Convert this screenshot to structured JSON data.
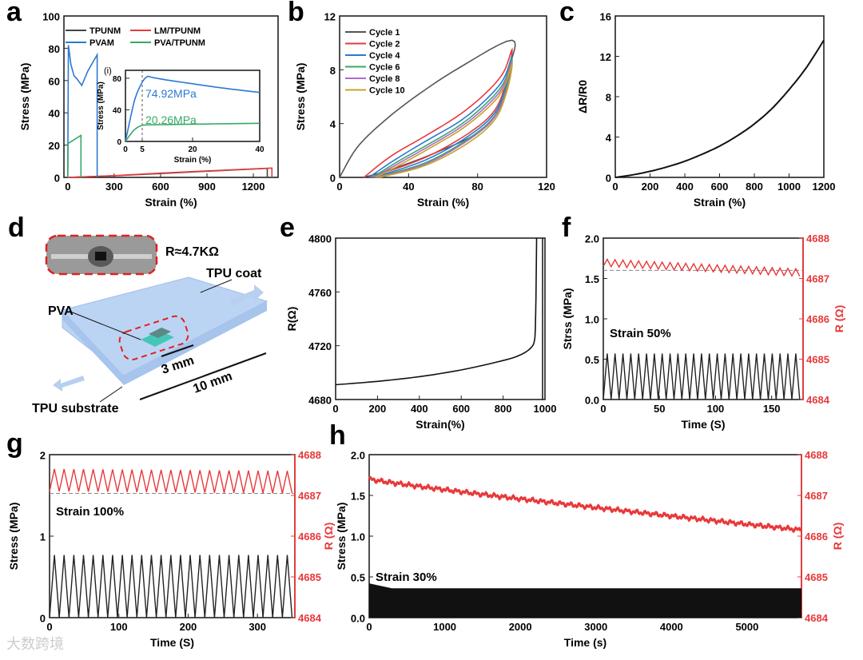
{
  "panel_letters": [
    "a",
    "b",
    "c",
    "d",
    "e",
    "f",
    "g",
    "h"
  ],
  "watermark": "大数跨境",
  "colors": {
    "black": "#111111",
    "grey": "#555555",
    "red": "#e8393a",
    "blue": "#2c78d4",
    "green": "#38a865",
    "purple": "#b06ad0",
    "gold": "#c9a227",
    "axis_red": "#e8393a"
  },
  "diagram_d": {
    "resistance_label": "R≈4.7KΩ",
    "tpu_coat": "TPU coat",
    "pva": "PVA",
    "gap": "3 mm",
    "length": "10 mm",
    "tpu_substrate": "TPU substrate"
  },
  "chart_data": [
    {
      "id": "a",
      "type": "line",
      "xlabel": "Strain (%)",
      "ylabel": "Stress (MPa)",
      "xlim": [
        -25,
        1360
      ],
      "ylim": [
        0,
        100
      ],
      "xticks": [
        0,
        300,
        600,
        900,
        1200
      ],
      "yticks": [
        0,
        20,
        40,
        60,
        80,
        100
      ],
      "legend": "top-left",
      "series": [
        {
          "name": "TPUNM",
          "color": "#444444",
          "points": [
            [
              0,
              0
            ],
            [
              300,
              1
            ],
            [
              600,
              2.4
            ],
            [
              900,
              3.8
            ],
            [
              1290,
              5.6
            ],
            [
              1290,
              0
            ]
          ]
        },
        {
          "name": "LM/TPUNM",
          "color": "#e8393a",
          "points": [
            [
              0,
              0
            ],
            [
              300,
              1.1
            ],
            [
              600,
              2.6
            ],
            [
              900,
              4.0
            ],
            [
              1320,
              5.8
            ],
            [
              1320,
              0
            ]
          ]
        },
        {
          "name": "PVAM",
          "color": "#2c78d4",
          "points": [
            [
              0,
              0
            ],
            [
              4,
              82
            ],
            [
              20,
              70
            ],
            [
              40,
              63
            ],
            [
              60,
              61
            ],
            [
              90,
              57
            ],
            [
              130,
              66
            ],
            [
              190,
              76
            ],
            [
              190,
              0
            ]
          ]
        },
        {
          "name": "PVA/TPUNM",
          "color": "#38a865",
          "points": [
            [
              0,
              0
            ],
            [
              2,
              21
            ],
            [
              85,
              26
            ],
            [
              85,
              0
            ]
          ]
        }
      ],
      "inset": {
        "label": "(i)",
        "xlabel": "Strain (%)",
        "ylabel": "Stress (MPa)",
        "xlim": [
          0,
          40
        ],
        "ylim": [
          0,
          90
        ],
        "xticks": [
          0,
          5,
          20,
          40
        ],
        "yticks": [
          0,
          40,
          80
        ],
        "marker_x": 5,
        "annotations": [
          {
            "text": "74.92MPa",
            "color": "#2c78d4"
          },
          {
            "text": "20.26MPa",
            "color": "#38a865"
          }
        ],
        "series": [
          {
            "name": "PVAM",
            "color": "#2c78d4",
            "points": [
              [
                0,
                0
              ],
              [
                1.5,
                30
              ],
              [
                3,
                56
              ],
              [
                5,
                75
              ],
              [
                6.5,
                82
              ],
              [
                8,
                81
              ],
              [
                12,
                78
              ],
              [
                20,
                73
              ],
              [
                30,
                67
              ],
              [
                40,
                62
              ]
            ]
          },
          {
            "name": "PVA/TPUNM",
            "color": "#38a865",
            "points": [
              [
                0,
                0
              ],
              [
                1.5,
                9
              ],
              [
                3,
                16
              ],
              [
                5,
                20.3
              ],
              [
                8,
                21
              ],
              [
                20,
                21.8
              ],
              [
                40,
                23
              ]
            ]
          }
        ]
      }
    },
    {
      "id": "b",
      "type": "line",
      "xlabel": "Strain (%)",
      "ylabel": "Stress (MPa)",
      "xlim": [
        0,
        120
      ],
      "ylim": [
        0,
        12
      ],
      "xticks": [
        0,
        40,
        80,
        120
      ],
      "yticks": [
        0,
        4,
        8,
        12
      ],
      "legend": "top-left",
      "series": [
        {
          "name": "Cycle 1",
          "color": "#555555",
          "points": [
            [
              0,
              0
            ],
            [
              10,
              2.2
            ],
            [
              25,
              4.1
            ],
            [
              45,
              6.1
            ],
            [
              70,
              8.2
            ],
            [
              100,
              10.2
            ],
            [
              98,
              8
            ],
            [
              92,
              5
            ],
            [
              80,
              3.3
            ],
            [
              55,
              1.8
            ],
            [
              30,
              0.6
            ],
            [
              14,
              0
            ]
          ]
        },
        {
          "name": "Cycle 2",
          "color": "#e8393a",
          "points": [
            [
              14,
              0
            ],
            [
              30,
              1.6
            ],
            [
              50,
              3.1
            ],
            [
              70,
              4.7
            ],
            [
              85,
              6.3
            ],
            [
              95,
              7.8
            ],
            [
              100,
              9.5
            ],
            [
              97,
              7.3
            ],
            [
              90,
              5
            ],
            [
              75,
              3.3
            ],
            [
              50,
              1.5
            ],
            [
              18,
              0
            ]
          ]
        },
        {
          "name": "Cycle 4",
          "color": "#2c78d4",
          "points": [
            [
              17,
              0
            ],
            [
              32,
              1.3
            ],
            [
              50,
              2.7
            ],
            [
              70,
              4.2
            ],
            [
              85,
              5.8
            ],
            [
              95,
              7.3
            ],
            [
              100,
              9.0
            ],
            [
              97,
              7
            ],
            [
              90,
              4.8
            ],
            [
              75,
              3.1
            ],
            [
              50,
              1.3
            ],
            [
              20,
              0
            ]
          ]
        },
        {
          "name": "Cycle 6",
          "color": "#38a865",
          "points": [
            [
              19,
              0
            ],
            [
              34,
              1.2
            ],
            [
              52,
              2.5
            ],
            [
              70,
              3.9
            ],
            [
              85,
              5.5
            ],
            [
              95,
              7.0
            ],
            [
              100,
              8.8
            ],
            [
              97,
              6.8
            ],
            [
              90,
              4.6
            ],
            [
              75,
              2.9
            ],
            [
              50,
              1.1
            ],
            [
              21,
              0
            ]
          ]
        },
        {
          "name": "Cycle 8",
          "color": "#b06ad0",
          "points": [
            [
              20,
              0
            ],
            [
              35,
              1.1
            ],
            [
              53,
              2.4
            ],
            [
              71,
              3.8
            ],
            [
              86,
              5.4
            ],
            [
              95,
              6.8
            ],
            [
              100,
              8.6
            ],
            [
              97,
              6.6
            ],
            [
              90,
              4.5
            ],
            [
              75,
              2.8
            ],
            [
              50,
              1.0
            ],
            [
              22,
              0
            ]
          ]
        },
        {
          "name": "Cycle 10",
          "color": "#c9a227",
          "points": [
            [
              21,
              0
            ],
            [
              36,
              1.0
            ],
            [
              54,
              2.3
            ],
            [
              72,
              3.7
            ],
            [
              87,
              5.3
            ],
            [
              95,
              6.6
            ],
            [
              100,
              8.4
            ],
            [
              97,
              6.4
            ],
            [
              90,
              4.3
            ],
            [
              75,
              2.6
            ],
            [
              50,
              0.9
            ],
            [
              23,
              0
            ]
          ]
        }
      ]
    },
    {
      "id": "c",
      "type": "line",
      "xlabel": "Strain (%)",
      "ylabel": "ΔR/R0",
      "xlim": [
        0,
        1200
      ],
      "ylim": [
        0,
        16
      ],
      "xticks": [
        0,
        200,
        400,
        600,
        800,
        1000,
        1200
      ],
      "yticks": [
        0,
        4,
        8,
        12,
        16
      ],
      "series": [
        {
          "name": "ΔR/R0",
          "color": "#111111",
          "points": [
            [
              0,
              0
            ],
            [
              100,
              0.25
            ],
            [
              200,
              0.6
            ],
            [
              300,
              1.05
            ],
            [
              400,
              1.6
            ],
            [
              500,
              2.3
            ],
            [
              600,
              3.1
            ],
            [
              700,
              4.1
            ],
            [
              800,
              5.3
            ],
            [
              900,
              6.8
            ],
            [
              1000,
              8.7
            ],
            [
              1100,
              10.9
            ],
            [
              1200,
              13.6
            ]
          ]
        }
      ]
    },
    {
      "id": "e",
      "type": "line",
      "xlabel": "Strain(%)",
      "ylabel": "R(Ω)",
      "xlim": [
        0,
        1000
      ],
      "ylim": [
        4680,
        4800
      ],
      "xticks": [
        0,
        200,
        400,
        600,
        800,
        1000
      ],
      "yticks": [
        4680,
        4720,
        4760,
        4800
      ],
      "series": [
        {
          "name": "R",
          "color": "#111111",
          "points": [
            [
              0,
              4691
            ],
            [
              200,
              4693.5
            ],
            [
              400,
              4697
            ],
            [
              600,
              4702
            ],
            [
              800,
              4709
            ],
            [
              880,
              4713
            ],
            [
              930,
              4718
            ],
            [
              950,
              4724
            ],
            [
              955,
              4740
            ],
            [
              958,
              4770
            ],
            [
              960,
              4800
            ]
          ]
        }
      ]
    },
    {
      "id": "f",
      "type": "cyclic",
      "xlabel": "Time (S)",
      "ylabel": "Strss (MPa)",
      "ylabel_right": "R (Ω)",
      "annotation": "Strain 50%",
      "xlim": [
        0,
        178
      ],
      "ylim": [
        0,
        2
      ],
      "ylim_right": [
        4684,
        4688
      ],
      "xticks": [
        0,
        50,
        100,
        150
      ],
      "yticks": [
        0,
        0.5,
        1.0,
        1.5,
        2.0
      ],
      "yticks_right": [
        4684,
        4685,
        4686,
        4687,
        4688
      ],
      "stress": {
        "cycles": 25,
        "period": 7,
        "min": 0,
        "max": 0.57
      },
      "resistance": {
        "baseline": 4687.05,
        "amplitude": 0.18,
        "start": 4687.3,
        "end": 4687.05,
        "reference_line": 4687.2
      }
    },
    {
      "id": "g",
      "type": "cyclic",
      "xlabel": "Time (S)",
      "ylabel": "Stress (MPa)",
      "ylabel_right": "R (Ω)",
      "annotation": "Strain 100%",
      "xlim": [
        0,
        354
      ],
      "ylim": [
        0,
        2
      ],
      "ylim_right": [
        4684,
        4688
      ],
      "xticks": [
        0,
        100,
        200,
        300
      ],
      "yticks": [
        0,
        1,
        2
      ],
      "yticks_right": [
        4684,
        4685,
        4686,
        4687,
        4688
      ],
      "stress": {
        "cycles": 25,
        "period": 14,
        "min": 0,
        "max": 0.77
      },
      "resistance": {
        "baseline": 4687.05,
        "amplitude": 0.55,
        "start": 4687.1,
        "end": 4687.05,
        "reference_line": 4687.05
      }
    },
    {
      "id": "h",
      "type": "cyclic",
      "xlabel": "Time (s)",
      "ylabel": "Stress (MPa)",
      "ylabel_right": "R (Ω)",
      "annotation": "Strain 30%",
      "xlim": [
        0,
        5720
      ],
      "ylim": [
        0,
        2
      ],
      "ylim_right": [
        4684,
        4688
      ],
      "xticks": [
        0,
        1000,
        2000,
        3000,
        4000,
        5000
      ],
      "yticks": [
        0,
        0.5,
        1.0,
        1.5,
        2.0
      ],
      "yticks_right": [
        4684,
        4685,
        4686,
        4687,
        4688
      ],
      "stress": {
        "cycles": 0,
        "band": [
          0,
          0.36
        ],
        "start_peak": 0.42
      },
      "resistance": {
        "baseline": 4687.35,
        "amplitude": 0.06,
        "start": 4687.4,
        "end": 4686.15,
        "reference_line": null
      }
    }
  ]
}
